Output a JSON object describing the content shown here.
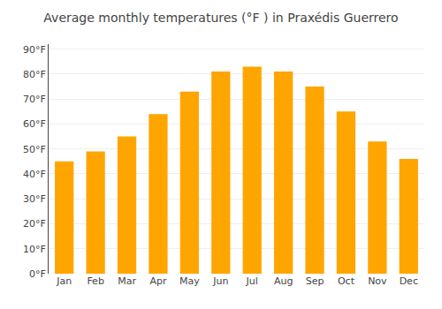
{
  "chart_data": {
    "type": "bar",
    "title": "Average monthly temperatures (°F ) in Praxédis Guerrero",
    "categories": [
      "Jan",
      "Feb",
      "Mar",
      "Apr",
      "May",
      "Jun",
      "Jul",
      "Aug",
      "Sep",
      "Oct",
      "Nov",
      "Dec"
    ],
    "values": [
      45,
      49,
      55,
      64,
      73,
      81,
      83,
      81,
      75,
      65,
      53,
      46
    ],
    "color": "#FFA500",
    "ylim": [
      0,
      92
    ],
    "yticks": [
      {
        "value": 0,
        "label": "0°F"
      },
      {
        "value": 10,
        "label": "10°F"
      },
      {
        "value": 20,
        "label": "20°F"
      },
      {
        "value": 30,
        "label": "30°F"
      },
      {
        "value": 40,
        "label": "40°F"
      },
      {
        "value": 50,
        "label": "50°F"
      },
      {
        "value": 60,
        "label": "60°F"
      },
      {
        "value": 70,
        "label": "70°F"
      },
      {
        "value": 80,
        "label": "80°F"
      },
      {
        "value": 90,
        "label": "90°F"
      }
    ],
    "grid": true
  }
}
